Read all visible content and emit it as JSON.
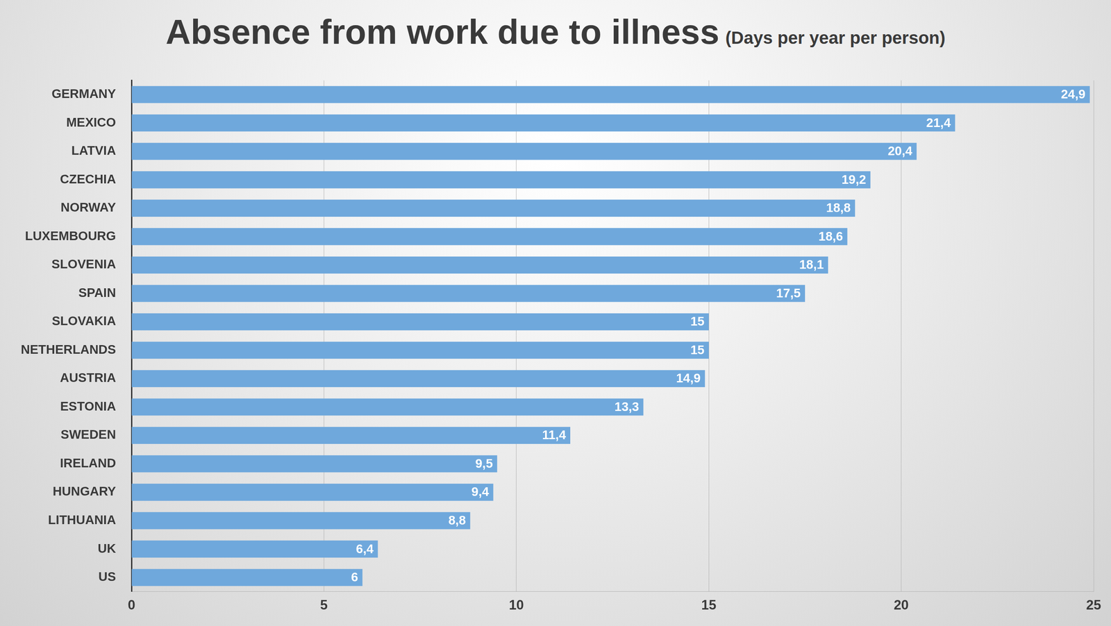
{
  "chart_data": {
    "type": "bar",
    "orientation": "horizontal",
    "title": "Absence from work due to illness",
    "subtitle": "(Days per year per person)",
    "categories": [
      "GERMANY",
      "MEXICO",
      "LATVIA",
      "CZECHIA",
      "NORWAY",
      "LUXEMBOURG",
      "SLOVENIA",
      "SPAIN",
      "SLOVAKIA",
      "NETHERLANDS",
      "AUSTRIA",
      "ESTONIA",
      "SWEDEN",
      "IRELAND",
      "HUNGARY",
      "LITHUANIA",
      "UK",
      "US"
    ],
    "values": [
      24.9,
      21.4,
      20.4,
      19.2,
      18.8,
      18.6,
      18.1,
      17.5,
      15,
      15,
      14.9,
      13.3,
      11.4,
      9.5,
      9.4,
      8.8,
      6.4,
      6
    ],
    "value_labels": [
      "24,9",
      "21,4",
      "20,4",
      "19,2",
      "18,8",
      "18,6",
      "18,1",
      "17,5",
      "15",
      "15",
      "14,9",
      "13,3",
      "11,4",
      "9,5",
      "9,4",
      "8,8",
      "6,4",
      "6"
    ],
    "data_labels": true,
    "color": "#6fa8dc",
    "xlim": [
      0,
      25
    ],
    "xticks": [
      0,
      5,
      10,
      15,
      20,
      25
    ],
    "grid": true
  }
}
